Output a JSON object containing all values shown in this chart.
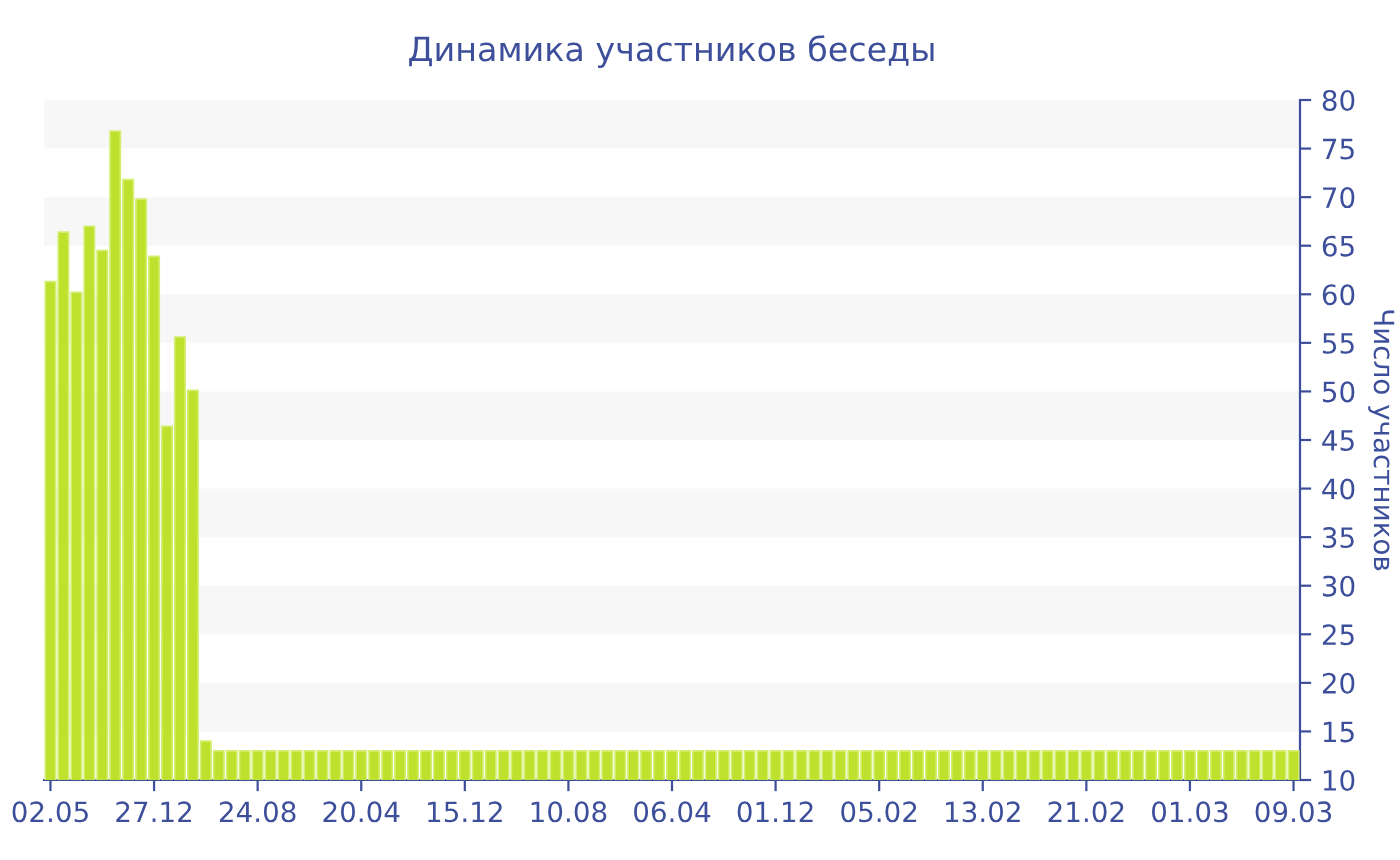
{
  "chart_data": {
    "type": "bar",
    "title": "Динамика участников беседы",
    "ylabel": "Число участников",
    "categories": [
      "02.05",
      null,
      null,
      null,
      null,
      null,
      null,
      null,
      "27.12",
      null,
      null,
      null,
      null,
      null,
      null,
      null,
      "24.08",
      null,
      null,
      null,
      null,
      null,
      null,
      null,
      "20.04",
      null,
      null,
      null,
      null,
      null,
      null,
      null,
      "15.12",
      null,
      null,
      null,
      null,
      null,
      null,
      null,
      "10.08",
      null,
      null,
      null,
      null,
      null,
      null,
      null,
      "06.04",
      null,
      null,
      null,
      null,
      null,
      null,
      null,
      "01.12",
      null,
      null,
      null,
      null,
      null,
      null,
      null,
      "05.02",
      null,
      null,
      null,
      null,
      null,
      null,
      null,
      "13.02",
      null,
      null,
      null,
      null,
      null,
      null,
      null,
      "21.02",
      null,
      null,
      null,
      null,
      null,
      null,
      null,
      "01.03",
      null,
      null,
      null,
      null,
      null,
      null,
      null,
      "09.03"
    ],
    "values": [
      61.3,
      66.4,
      60.2,
      67,
      64.5,
      76.8,
      71.8,
      69.8,
      63.9,
      46.4,
      55.6,
      50.1,
      14,
      13,
      13,
      13,
      13,
      13,
      13,
      13,
      13,
      13,
      13,
      13,
      13,
      13,
      13,
      13,
      13,
      13,
      13,
      13,
      13,
      13,
      13,
      13,
      13,
      13,
      13,
      13,
      13,
      13,
      13,
      13,
      13,
      13,
      13,
      13,
      13,
      13,
      13,
      13,
      13,
      13,
      13,
      13,
      13,
      13,
      13,
      13,
      13,
      13,
      13,
      13,
      13,
      13,
      13,
      13,
      13,
      13,
      13,
      13,
      13,
      13,
      13,
      13,
      13,
      13,
      13,
      13,
      13,
      13,
      13,
      13,
      13,
      13,
      13,
      13,
      13,
      13,
      13,
      13,
      13,
      13,
      13,
      13,
      13
    ],
    "color": "#bde12d",
    "ylim": [
      10,
      80
    ],
    "yticks": [
      10,
      15,
      20,
      25,
      30,
      35,
      40,
      45,
      50,
      55,
      60,
      65,
      70,
      75,
      80
    ],
    "bands": [
      {
        "axis": "y",
        "from": 15,
        "to": 20,
        "color": "#f7f7f7"
      },
      {
        "axis": "y",
        "from": 25,
        "to": 30,
        "color": "#f7f7f7"
      },
      {
        "axis": "y",
        "from": 35,
        "to": 40,
        "color": "#f7f7f7"
      },
      {
        "axis": "y",
        "from": 45,
        "to": 50,
        "color": "#f7f7f7"
      },
      {
        "axis": "y",
        "from": 55,
        "to": 60,
        "color": "#f7f7f7"
      },
      {
        "axis": "y",
        "from": 65,
        "to": 70,
        "color": "#f7f7f7"
      },
      {
        "axis": "y",
        "from": 75,
        "to": 80,
        "color": "#f7f7f7"
      }
    ],
    "grid": false
  }
}
